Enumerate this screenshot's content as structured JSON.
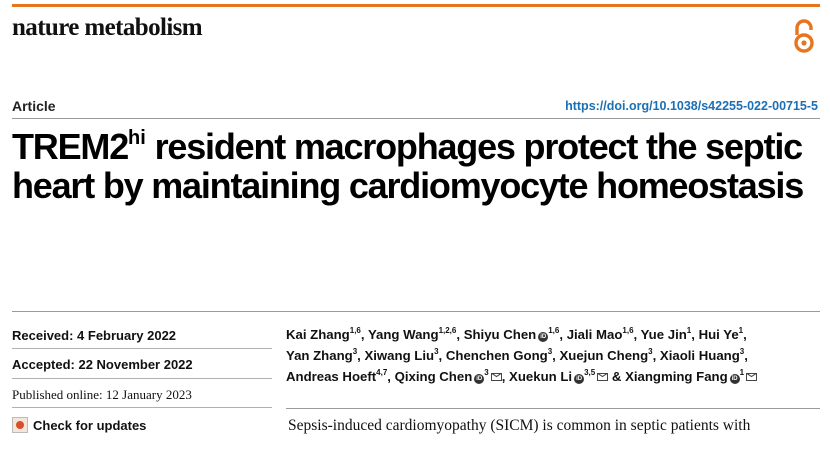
{
  "header": {
    "journal_name": "nature metabolism",
    "accent_color": "#e8741e",
    "open_access_icon": "open-access-icon"
  },
  "article": {
    "type": "Article",
    "doi": "https://doi.org/10.1038/s42255-022-00715-5",
    "title_part1": "TREM2",
    "title_sup": "hi",
    "title_part2": " resident macrophages protect the septic heart by maintaining cardiomyocyte homeostasis"
  },
  "dates": {
    "received": "Received: 4 February 2022",
    "accepted": "Accepted: 22 November 2022",
    "published": "Published online: 12 January 2023",
    "check_updates": "Check for updates"
  },
  "authors": [
    {
      "name": "Kai Zhang",
      "aff": "1,6"
    },
    {
      "name": "Yang Wang",
      "aff": "1,2,6"
    },
    {
      "name": "Shiyu Chen",
      "aff": "1,6",
      "orcid": true
    },
    {
      "name": "Jiali Mao",
      "aff": "1,6"
    },
    {
      "name": "Yue Jin",
      "aff": "1"
    },
    {
      "name": "Hui Ye",
      "aff": "1"
    },
    {
      "name": "Yan Zhang",
      "aff": "3"
    },
    {
      "name": "Xiwang Liu",
      "aff": "3"
    },
    {
      "name": "Chenchen Gong",
      "aff": "3"
    },
    {
      "name": "Xuejun Cheng",
      "aff": "3"
    },
    {
      "name": "Xiaoli Huang",
      "aff": "3"
    },
    {
      "name": "Andreas Hoeft",
      "aff": "4,7"
    },
    {
      "name": "Qixing Chen",
      "aff": "3",
      "orcid": true,
      "mail": true
    },
    {
      "name": "Xuekun Li",
      "aff": "3,5",
      "orcid": true,
      "mail": true
    },
    {
      "name": "Xiangming Fang",
      "aff": "1",
      "orcid": true,
      "mail": true
    }
  ],
  "authors_amp": "&",
  "orcid_glyph": "iD",
  "abstract_start": "Sepsis-induced cardiomyopathy (SICM) is common in septic patients with"
}
